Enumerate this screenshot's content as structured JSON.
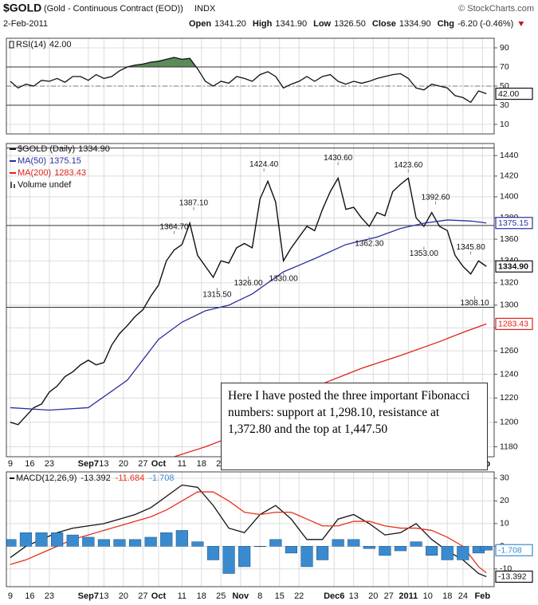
{
  "header": {
    "symbol": "$GOLD",
    "name": "(Gold - Continuous Contract (EOD))",
    "exchange": "INDX",
    "source": "© StockCharts.com",
    "date": "2-Feb-2011",
    "quote": [
      {
        "label": "Open",
        "value": "1341.20"
      },
      {
        "label": "High",
        "value": "1341.90"
      },
      {
        "label": "Low",
        "value": "1326.50"
      },
      {
        "label": "Close",
        "value": "1334.90"
      },
      {
        "label": "Chg",
        "value": "-6.20 (-0.46%)"
      }
    ]
  },
  "x_axis": {
    "xlim": [
      -1,
      124
    ],
    "xticks": [
      {
        "value": 0,
        "label": "9"
      },
      {
        "value": 5,
        "label": "16"
      },
      {
        "value": 10,
        "label": "23"
      },
      {
        "value": 20,
        "label": "Sep7"
      },
      {
        "value": 24,
        "label": "13"
      },
      {
        "value": 29,
        "label": "20"
      },
      {
        "value": 34,
        "label": "27"
      },
      {
        "value": 38,
        "label": "Oct"
      },
      {
        "value": 44,
        "label": "11"
      },
      {
        "value": 49,
        "label": "18"
      },
      {
        "value": 54,
        "label": "25"
      },
      {
        "value": 59,
        "label": "Nov"
      },
      {
        "value": 64,
        "label": "8"
      },
      {
        "value": 69,
        "label": "15"
      },
      {
        "value": 74,
        "label": "22"
      },
      {
        "value": 83,
        "label": "Dec6"
      },
      {
        "value": 88,
        "label": "13"
      },
      {
        "value": 93,
        "label": "20"
      },
      {
        "value": 97,
        "label": "27"
      },
      {
        "value": 102,
        "label": "2011"
      },
      {
        "value": 107,
        "label": "10"
      },
      {
        "value": 112,
        "label": "18"
      },
      {
        "value": 116,
        "label": "24"
      },
      {
        "value": 121,
        "label": "Feb"
      }
    ]
  },
  "chart_data": [
    {
      "type": "line",
      "ylim": [
        0,
        100
      ],
      "yticks": [
        10,
        30,
        50,
        70,
        90
      ],
      "reference_lines": [
        70,
        50,
        30
      ],
      "fill_color": "#5b8a5b",
      "grid": true,
      "series": [
        {
          "name": "RSI(14)",
          "color": "#111111",
          "tag": true,
          "last_label": "42.00",
          "x": [
            0,
            2,
            4,
            6,
            8,
            10,
            12,
            14,
            16,
            18,
            20,
            22,
            24,
            26,
            28,
            30,
            32,
            34,
            36,
            38,
            40,
            42,
            44,
            46,
            48,
            50,
            52,
            54,
            56,
            58,
            60,
            62,
            64,
            66,
            68,
            70,
            72,
            74,
            76,
            78,
            80,
            82,
            84,
            86,
            88,
            90,
            92,
            94,
            96,
            98,
            100,
            102,
            104,
            106,
            108,
            110,
            112,
            114,
            116,
            118,
            120,
            122
          ],
          "values": [
            55,
            48,
            52,
            50,
            56,
            55,
            58,
            54,
            60,
            60,
            56,
            62,
            58,
            60,
            66,
            70,
            72,
            73,
            75,
            76,
            78,
            80,
            78,
            79,
            68,
            55,
            50,
            55,
            53,
            60,
            58,
            55,
            62,
            65,
            60,
            48,
            52,
            55,
            60,
            55,
            60,
            62,
            55,
            52,
            55,
            53,
            55,
            58,
            60,
            62,
            63,
            58,
            48,
            46,
            52,
            50,
            48,
            40,
            38,
            33,
            45,
            42
          ]
        }
      ]
    },
    {
      "type": "line",
      "log": true,
      "ylim": [
        1172,
        1452
      ],
      "yticks": [
        1180,
        1200,
        1220,
        1240,
        1260,
        1280,
        1300,
        1320,
        1340,
        1360,
        1380,
        1400,
        1420,
        1440
      ],
      "reference_lines": [
        1447.5,
        1372.8,
        1298.1
      ],
      "grid": true,
      "volume_note": "Volume undef",
      "series": [
        {
          "name": "$GOLD (Daily)",
          "color": "#111111",
          "tag": true,
          "last_label": "1334.90",
          "x": [
            0,
            2,
            4,
            6,
            8,
            10,
            12,
            14,
            16,
            18,
            20,
            22,
            24,
            26,
            28,
            30,
            32,
            34,
            36,
            38,
            40,
            42,
            44,
            46,
            48,
            50,
            52,
            54,
            56,
            58,
            60,
            62,
            64,
            66,
            68,
            70,
            72,
            74,
            76,
            78,
            80,
            82,
            84,
            86,
            88,
            90,
            92,
            94,
            96,
            98,
            100,
            102,
            104,
            106,
            108,
            110,
            112,
            114,
            116,
            118,
            120,
            122
          ],
          "values": [
            1200,
            1198,
            1205,
            1212,
            1215,
            1225,
            1230,
            1238,
            1242,
            1248,
            1252,
            1248,
            1250,
            1265,
            1275,
            1282,
            1290,
            1296,
            1308,
            1318,
            1340,
            1350,
            1355,
            1375,
            1345,
            1335,
            1325,
            1340,
            1338,
            1352,
            1356,
            1352,
            1398,
            1415,
            1395,
            1340,
            1352,
            1362,
            1372,
            1368,
            1388,
            1405,
            1418,
            1388,
            1390,
            1380,
            1372,
            1385,
            1382,
            1405,
            1412,
            1418,
            1380,
            1372,
            1385,
            1372,
            1368,
            1345,
            1335,
            1328,
            1340,
            1334.9
          ]
        },
        {
          "name": "MA(50)",
          "color": "#2a2f9c",
          "tag": true,
          "x": [
            0,
            10,
            20,
            30,
            38,
            44,
            50,
            56,
            62,
            70,
            78,
            86,
            94,
            100,
            106,
            112,
            118,
            122
          ],
          "values": [
            1212,
            1210,
            1212,
            1235,
            1270,
            1285,
            1295,
            1300,
            1310,
            1330,
            1342,
            1355,
            1362,
            1370,
            1375,
            1378,
            1377,
            1375.15
          ]
        },
        {
          "name": "MA(200)",
          "color": "#e0201a",
          "tag": true,
          "x": [
            42,
            50,
            60,
            70,
            80,
            90,
            100,
            110,
            116,
            122
          ],
          "values": [
            1172,
            1180,
            1192,
            1210,
            1232,
            1245,
            1256,
            1268,
            1276,
            1283.43
          ]
        }
      ],
      "price_labels": [
        {
          "x": 65,
          "value": 1424.4,
          "label": "1424.40"
        },
        {
          "x": 84,
          "value": 1430.6,
          "label": "1430.60"
        },
        {
          "x": 102,
          "value": 1423.6,
          "label": "1423.60"
        },
        {
          "x": 47,
          "value": 1387.1,
          "label": "1387.10"
        },
        {
          "x": 42,
          "value": 1364.7,
          "label": "1364.70"
        },
        {
          "x": 109,
          "value": 1392.6,
          "label": "1392.60"
        },
        {
          "x": 92,
          "value": 1362.3,
          "label": "1362.30"
        },
        {
          "x": 106,
          "value": 1353,
          "label": "1353.00"
        },
        {
          "x": 118,
          "value": 1345.8,
          "label": "1345.80"
        },
        {
          "x": 61,
          "value": 1326,
          "label": "1326.00"
        },
        {
          "x": 70,
          "value": 1330,
          "label": "1330.00"
        },
        {
          "x": 53,
          "value": 1315.5,
          "label": "1315.50"
        },
        {
          "x": 119,
          "value": 1308.1,
          "label": "1308.10"
        }
      ]
    },
    {
      "type": "line",
      "title": "MACD(12,26,9)",
      "ylim": [
        -17.8,
        32.8
      ],
      "yticks": [
        -10,
        0,
        10,
        20,
        30
      ],
      "grid": true,
      "series": [
        {
          "color": "#111111",
          "tag": true,
          "x": [
            0,
            4,
            8,
            12,
            16,
            20,
            24,
            28,
            32,
            36,
            40,
            44,
            48,
            52,
            56,
            60,
            64,
            68,
            72,
            76,
            80,
            84,
            88,
            92,
            96,
            100,
            104,
            108,
            112,
            116,
            120,
            122
          ],
          "values": [
            -5,
            0,
            3,
            6,
            8,
            9,
            10,
            12,
            14,
            17,
            22,
            27,
            26,
            18,
            8,
            6,
            14,
            18,
            12,
            3,
            3,
            12,
            14,
            10,
            5,
            6,
            10,
            3,
            -2,
            -6,
            -12,
            -13.392
          ]
        },
        {
          "color": "#e8301a",
          "x": [
            0,
            4,
            8,
            12,
            16,
            20,
            24,
            28,
            32,
            36,
            40,
            44,
            48,
            52,
            56,
            60,
            64,
            68,
            72,
            76,
            80,
            84,
            88,
            92,
            96,
            100,
            104,
            108,
            112,
            116,
            120,
            122
          ],
          "values": [
            -8,
            -6,
            -3,
            0,
            3,
            5,
            7,
            9,
            11,
            13,
            16,
            20,
            24,
            24,
            20,
            15,
            14,
            15,
            15,
            12,
            9,
            9,
            11,
            11,
            9,
            8,
            8,
            7,
            4,
            0,
            -9,
            -11.684
          ]
        },
        {
          "type": "bar",
          "color": "#3a8ad0",
          "tag": true,
          "x": [
            0,
            4,
            8,
            12,
            16,
            20,
            24,
            28,
            32,
            36,
            40,
            44,
            48,
            52,
            56,
            60,
            64,
            68,
            72,
            76,
            80,
            84,
            88,
            92,
            96,
            100,
            104,
            108,
            112,
            116,
            120,
            122
          ],
          "values": [
            3,
            6,
            6,
            6,
            5,
            4,
            3,
            3,
            3,
            4,
            6,
            7,
            2,
            -6,
            -12,
            -9,
            0,
            3,
            -3,
            -9,
            -6,
            3,
            3,
            -1,
            -4,
            -2,
            2,
            -4,
            -6,
            -6,
            -3,
            -1.708
          ]
        }
      ]
    }
  ],
  "annotation": "Here I have posted the three important Fibonacci numbers: support at 1,298.10, resistance at 1,372.80 and the top at 1,447.50"
}
